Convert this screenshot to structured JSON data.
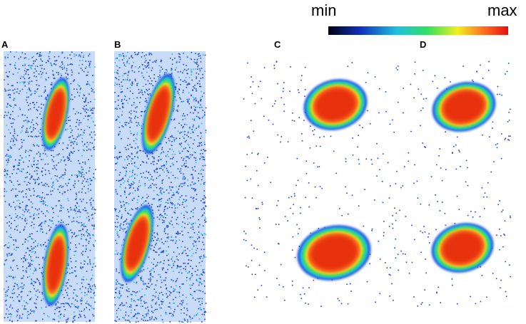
{
  "panels": {
    "a": {
      "label": "A"
    },
    "b": {
      "label": "B"
    },
    "c": {
      "label": "C"
    },
    "d": {
      "label": "D"
    }
  },
  "colorbar": {
    "min_label": "min",
    "max_label": "max"
  }
}
